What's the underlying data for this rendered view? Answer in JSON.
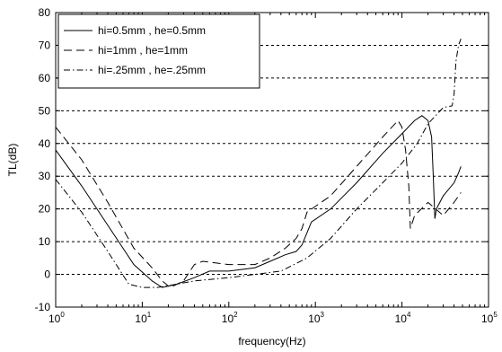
{
  "chart_data": {
    "type": "line",
    "title": "",
    "xlabel": "frequency(Hz)",
    "ylabel": "TL(dB)",
    "xscale": "log",
    "xlim": [
      1,
      100000
    ],
    "ylim": [
      -10,
      80
    ],
    "x_ticks": [
      {
        "base": "10",
        "exp": "0"
      },
      {
        "base": "10",
        "exp": "1"
      },
      {
        "base": "10",
        "exp": "2"
      },
      {
        "base": "10",
        "exp": "3"
      },
      {
        "base": "10",
        "exp": "4"
      },
      {
        "base": "10",
        "exp": "5"
      }
    ],
    "y_ticks": [
      "-10",
      "0",
      "10",
      "20",
      "30",
      "40",
      "50",
      "60",
      "70",
      "80"
    ],
    "grid": "horizontal dashed",
    "legend_position": "top-left",
    "series": [
      {
        "name": "hi=0.5mm , he=0.5mm",
        "style": "solid",
        "points": [
          [
            1,
            38
          ],
          [
            2,
            27
          ],
          [
            4,
            15
          ],
          [
            8,
            3
          ],
          [
            13,
            -2
          ],
          [
            17,
            -4
          ],
          [
            25,
            -3
          ],
          [
            40,
            -1
          ],
          [
            60,
            1
          ],
          [
            100,
            1
          ],
          [
            200,
            2
          ],
          [
            300,
            4
          ],
          [
            450,
            6
          ],
          [
            600,
            7
          ],
          [
            700,
            9
          ],
          [
            900,
            16
          ],
          [
            1500,
            20
          ],
          [
            3000,
            28
          ],
          [
            6000,
            37
          ],
          [
            10000,
            43
          ],
          [
            14000,
            47
          ],
          [
            17000,
            48.5
          ],
          [
            20000,
            47
          ],
          [
            22000,
            42
          ],
          [
            23000,
            30
          ],
          [
            24000,
            17
          ],
          [
            25000,
            20
          ],
          [
            30000,
            24
          ],
          [
            40000,
            28
          ],
          [
            45000,
            31
          ],
          [
            48000,
            33
          ]
        ]
      },
      {
        "name": "hi=1mm , he=1mm",
        "style": "dashed",
        "points": [
          [
            1,
            45
          ],
          [
            2,
            35
          ],
          [
            4,
            22
          ],
          [
            8,
            8
          ],
          [
            13,
            2
          ],
          [
            17,
            -2
          ],
          [
            21,
            -4
          ],
          [
            30,
            -2
          ],
          [
            40,
            3
          ],
          [
            50,
            4
          ],
          [
            100,
            3
          ],
          [
            200,
            3
          ],
          [
            300,
            5
          ],
          [
            450,
            8
          ],
          [
            600,
            11
          ],
          [
            700,
            14
          ],
          [
            800,
            19
          ],
          [
            1500,
            24
          ],
          [
            3000,
            33
          ],
          [
            6000,
            42
          ],
          [
            9000,
            47
          ],
          [
            10000,
            45
          ],
          [
            11000,
            38
          ],
          [
            12000,
            27
          ],
          [
            12500,
            14
          ],
          [
            14000,
            18
          ],
          [
            20000,
            22
          ],
          [
            30000,
            18
          ],
          [
            40000,
            22
          ],
          [
            48000,
            25
          ]
        ]
      },
      {
        "name": "hi=.25mm , he=.25mm",
        "style": "dashdot",
        "points": [
          [
            1,
            29
          ],
          [
            2,
            19
          ],
          [
            4,
            7
          ],
          [
            7,
            -3
          ],
          [
            10,
            -4
          ],
          [
            15,
            -4
          ],
          [
            25,
            -3
          ],
          [
            40,
            -2
          ],
          [
            100,
            -1
          ],
          [
            200,
            0
          ],
          [
            400,
            1
          ],
          [
            800,
            5
          ],
          [
            1500,
            11
          ],
          [
            3000,
            20
          ],
          [
            6000,
            28
          ],
          [
            10000,
            34
          ],
          [
            15000,
            40
          ],
          [
            20000,
            46
          ],
          [
            30000,
            51
          ],
          [
            38000,
            51.5
          ],
          [
            40000,
            55
          ],
          [
            42000,
            65
          ],
          [
            45000,
            70
          ],
          [
            48000,
            72
          ]
        ]
      }
    ]
  }
}
